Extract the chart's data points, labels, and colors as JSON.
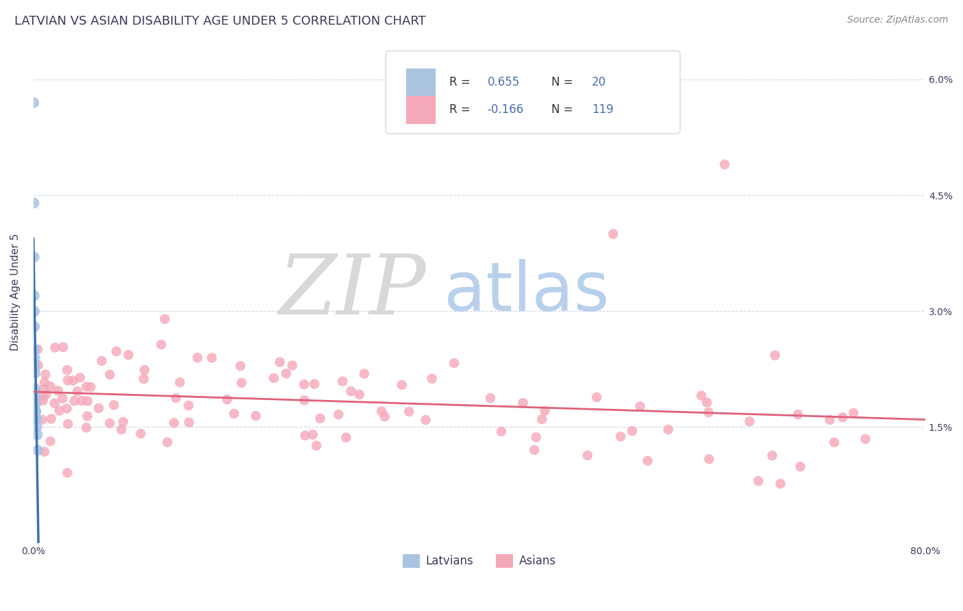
{
  "title": "LATVIAN VS ASIAN DISABILITY AGE UNDER 5 CORRELATION CHART",
  "source_text": "Source: ZipAtlas.com",
  "ylabel": "Disability Age Under 5",
  "xlim": [
    0.0,
    0.8
  ],
  "ylim": [
    0.0,
    0.065
  ],
  "yticks": [
    0.0,
    0.015,
    0.03,
    0.045,
    0.06
  ],
  "ytick_labels": [
    "",
    "1.5%",
    "3.0%",
    "4.5%",
    "6.0%"
  ],
  "latvian_R": 0.655,
  "latvian_N": 20,
  "asian_R": -0.166,
  "asian_N": 119,
  "latvian_color": "#aac4e0",
  "latvian_line_color": "#3a72b8",
  "asian_color": "#f5a8b8",
  "asian_line_color": "#e0607a",
  "background_color": "#ffffff",
  "watermark_zip_color": "#d8d8d8",
  "watermark_atlas_color": "#b8d0ec",
  "title_color": "#3a3a5a",
  "axis_label_color": "#3a3a5a",
  "tick_color": "#3a3a5a",
  "legend_blue_color": "#4a70b0",
  "grid_color": "#d0d8ea",
  "title_fontsize": 13,
  "axis_fontsize": 11,
  "tick_fontsize": 10,
  "source_fontsize": 10
}
